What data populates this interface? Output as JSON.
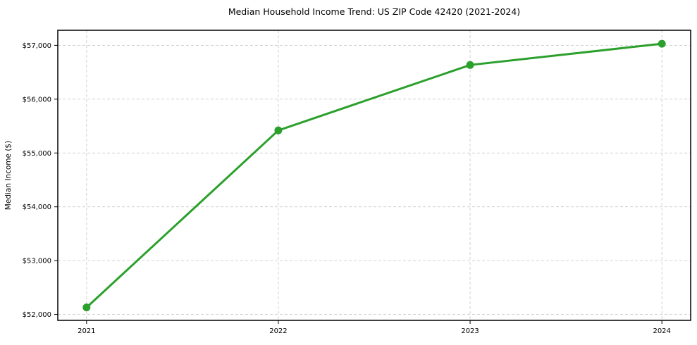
{
  "chart_data": {
    "type": "line",
    "title": "Median Household Income Trend: US ZIP Code 42420 (2021-2024)",
    "ylabel": "Median Income ($)",
    "xlabel": "",
    "x": [
      2021,
      2022,
      2023,
      2024
    ],
    "x_tick_labels": [
      "2021",
      "2022",
      "2023",
      "2024"
    ],
    "y_ticks": [
      52000,
      53000,
      54000,
      55000,
      56000,
      57000
    ],
    "y_tick_labels": [
      "$52,000",
      "$53,000",
      "$54,000",
      "$55,000",
      "$56,000",
      "$57,000"
    ],
    "series": [
      {
        "values": [
          52130,
          55420,
          56635,
          57030
        ],
        "color": "#2ca02c"
      }
    ],
    "xlim": [
      2020.85,
      2024.15
    ],
    "ylim": [
      51890,
      57280
    ],
    "grid": true,
    "grid_color": "#cccccc",
    "background_color": "#ffffff",
    "legend_position": "none"
  }
}
